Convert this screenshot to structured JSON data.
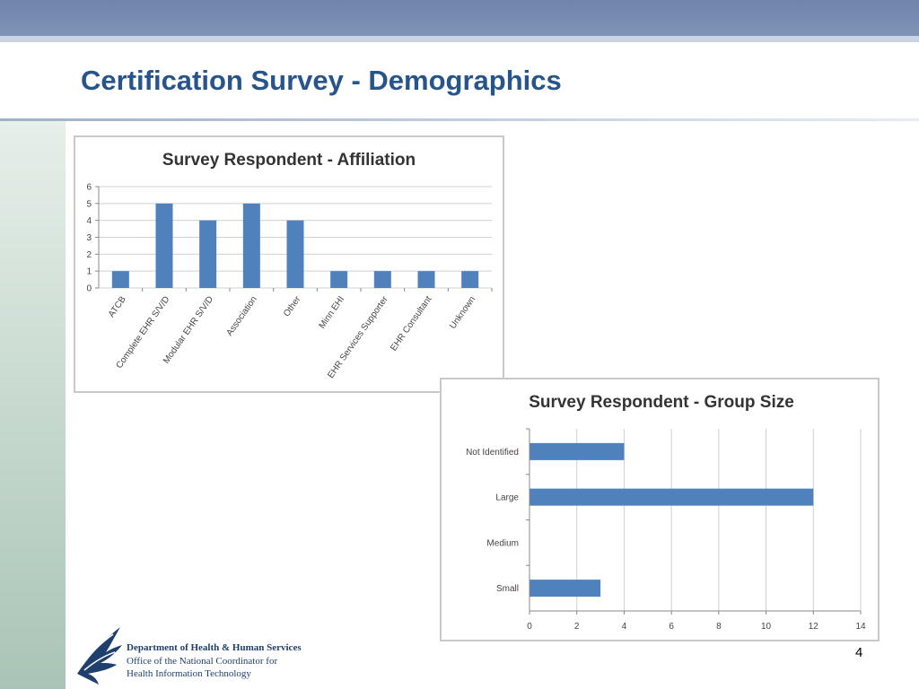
{
  "slide": {
    "title": "Certification Survey - Demographics",
    "page_number": "4",
    "logo": {
      "line1": "Department of Health & Human Services",
      "line2": "Office of the National Coordinator for",
      "line3": "Health Information Technology"
    }
  },
  "colors": {
    "bar": "#4f81bd",
    "grid": "#d0d0d0",
    "title": "#27548a"
  },
  "chart_data": [
    {
      "type": "bar",
      "title": "Survey Respondent - Affiliation",
      "categories": [
        "ATCB",
        "Complete EHR S/V/D",
        "Modular EHR S/V/D",
        "Association",
        "Other",
        "Minn EHI",
        "EHR Services Supporter",
        "EHR Consultant",
        "Unknown"
      ],
      "values": [
        1,
        5,
        4,
        5,
        4,
        1,
        1,
        1,
        1
      ],
      "ylim": [
        0,
        6
      ],
      "yticks": [
        0,
        1,
        2,
        3,
        4,
        5,
        6
      ],
      "grid": true,
      "legend": "none"
    },
    {
      "type": "bar",
      "orientation": "horizontal",
      "title": "Survey Respondent - Group Size",
      "categories": [
        "Not Identified",
        "Large",
        "Medium",
        "Small"
      ],
      "values": [
        4,
        12,
        0,
        3
      ],
      "xlim": [
        0,
        14
      ],
      "xticks": [
        0,
        2,
        4,
        6,
        8,
        10,
        12,
        14
      ],
      "grid": true,
      "legend": "none"
    }
  ]
}
